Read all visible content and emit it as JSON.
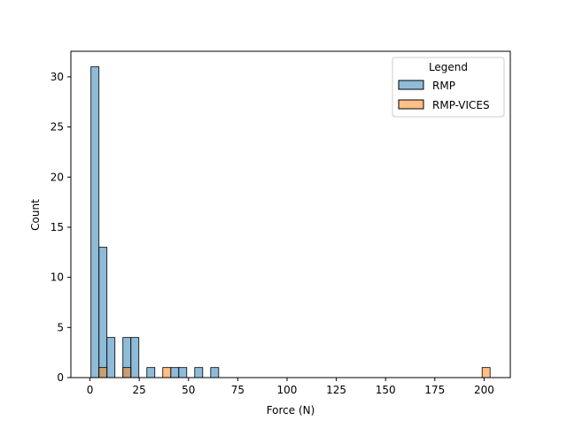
{
  "chart_data": {
    "type": "bar",
    "title": "",
    "xlabel": "Force (N)",
    "ylabel": "Count",
    "xlim": [
      -9.7,
      213.3
    ],
    "ylim": [
      0,
      32.55
    ],
    "xticks": [
      0,
      25,
      50,
      75,
      100,
      125,
      150,
      175,
      200
    ],
    "yticks": [
      0,
      5,
      10,
      15,
      20,
      25,
      30
    ],
    "grid": false,
    "bin_width": 4.05,
    "legend": {
      "title": "Legend",
      "placement": "top-right",
      "entries": [
        "RMP",
        "RMP-VICES"
      ]
    },
    "colors": {
      "RMP_fill": "#1f77b4",
      "RMP_fill_opacity": 0.5,
      "RMP_VICES_fill": "#ff7f0e",
      "RMP_VICES_fill_opacity": 0.5,
      "bar_edge": "#000000",
      "axis": "#000000",
      "background": "#ffffff"
    },
    "series": [
      {
        "name": "RMP",
        "bins": [
          {
            "x_start": 0.5,
            "count": 31
          },
          {
            "x_start": 4.55,
            "count": 13
          },
          {
            "x_start": 8.6,
            "count": 4
          },
          {
            "x_start": 16.7,
            "count": 4
          },
          {
            "x_start": 20.75,
            "count": 4
          },
          {
            "x_start": 28.85,
            "count": 1
          },
          {
            "x_start": 41.0,
            "count": 1
          },
          {
            "x_start": 45.05,
            "count": 1
          },
          {
            "x_start": 53.15,
            "count": 1
          },
          {
            "x_start": 61.25,
            "count": 1
          }
        ]
      },
      {
        "name": "RMP-VICES",
        "bins": [
          {
            "x_start": 4.55,
            "count": 1
          },
          {
            "x_start": 16.7,
            "count": 1
          },
          {
            "x_start": 36.95,
            "count": 1
          },
          {
            "x_start": 199.0,
            "count": 1
          }
        ]
      }
    ]
  }
}
